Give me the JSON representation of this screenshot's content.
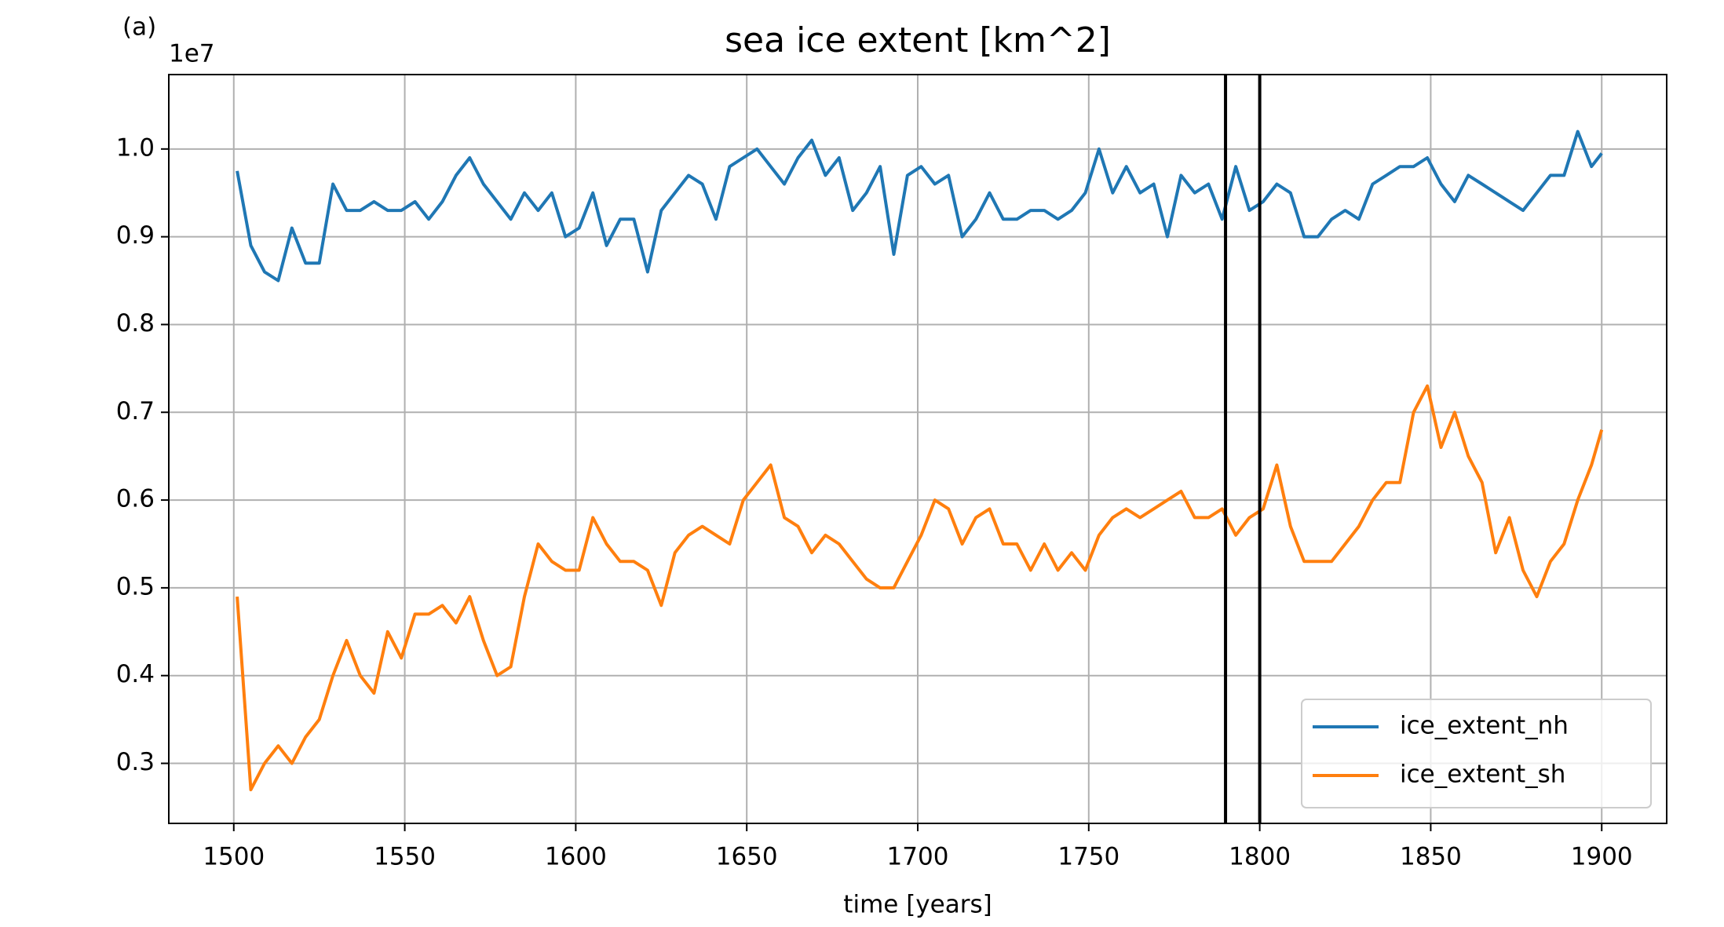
{
  "chart_data": {
    "type": "line",
    "panel_label": "(a)",
    "title": "sea ice extent [km^2]",
    "x_label": "time [years]",
    "y_offset_label": "1e7",
    "x": [
      1501,
      1505,
      1509,
      1513,
      1517,
      1521,
      1525,
      1529,
      1533,
      1537,
      1541,
      1545,
      1549,
      1553,
      1557,
      1561,
      1565,
      1569,
      1573,
      1577,
      1581,
      1585,
      1589,
      1593,
      1597,
      1601,
      1605,
      1609,
      1613,
      1617,
      1621,
      1625,
      1629,
      1633,
      1637,
      1641,
      1645,
      1649,
      1653,
      1657,
      1661,
      1665,
      1669,
      1673,
      1677,
      1681,
      1685,
      1689,
      1693,
      1697,
      1701,
      1705,
      1709,
      1713,
      1717,
      1721,
      1725,
      1729,
      1733,
      1737,
      1741,
      1745,
      1749,
      1753,
      1757,
      1761,
      1765,
      1769,
      1773,
      1777,
      1781,
      1785,
      1789,
      1793,
      1797,
      1801,
      1805,
      1809,
      1813,
      1817,
      1821,
      1825,
      1829,
      1833,
      1837,
      1841,
      1845,
      1849,
      1853,
      1857,
      1861,
      1865,
      1869,
      1873,
      1877,
      1881,
      1885,
      1889,
      1893,
      1897,
      1900
    ],
    "series": [
      {
        "name": "ice_extent_nh",
        "color": "#1f77b4",
        "values": [
          0.975,
          0.89,
          0.86,
          0.85,
          0.91,
          0.87,
          0.87,
          0.96,
          0.93,
          0.93,
          0.94,
          0.93,
          0.93,
          0.94,
          0.92,
          0.94,
          0.97,
          0.99,
          0.96,
          0.94,
          0.92,
          0.95,
          0.93,
          0.95,
          0.9,
          0.91,
          0.95,
          0.89,
          0.92,
          0.92,
          0.86,
          0.93,
          0.95,
          0.97,
          0.96,
          0.92,
          0.98,
          0.99,
          1.0,
          0.98,
          0.96,
          0.99,
          1.01,
          0.97,
          0.99,
          0.93,
          0.95,
          0.98,
          0.88,
          0.97,
          0.98,
          0.96,
          0.97,
          0.9,
          0.92,
          0.95,
          0.92,
          0.92,
          0.93,
          0.93,
          0.92,
          0.93,
          0.95,
          1.0,
          0.95,
          0.98,
          0.95,
          0.96,
          0.9,
          0.97,
          0.95,
          0.96,
          0.92,
          0.98,
          0.93,
          0.94,
          0.96,
          0.95,
          0.9,
          0.9,
          0.92,
          0.93,
          0.92,
          0.96,
          0.97,
          0.98,
          0.98,
          0.99,
          0.96,
          0.94,
          0.97,
          0.96,
          0.95,
          0.94,
          0.93,
          0.95,
          0.97,
          0.97,
          1.02,
          0.98,
          0.995
        ]
      },
      {
        "name": "ice_extent_sh",
        "color": "#ff7f0e",
        "values": [
          0.49,
          0.27,
          0.3,
          0.32,
          0.3,
          0.33,
          0.35,
          0.4,
          0.44,
          0.4,
          0.38,
          0.45,
          0.42,
          0.47,
          0.47,
          0.48,
          0.46,
          0.49,
          0.44,
          0.4,
          0.41,
          0.49,
          0.55,
          0.53,
          0.52,
          0.52,
          0.58,
          0.55,
          0.53,
          0.53,
          0.52,
          0.48,
          0.54,
          0.56,
          0.57,
          0.56,
          0.55,
          0.6,
          0.62,
          0.64,
          0.58,
          0.57,
          0.54,
          0.56,
          0.55,
          0.53,
          0.51,
          0.5,
          0.5,
          0.53,
          0.56,
          0.6,
          0.59,
          0.55,
          0.58,
          0.59,
          0.55,
          0.55,
          0.52,
          0.55,
          0.52,
          0.54,
          0.52,
          0.56,
          0.58,
          0.59,
          0.58,
          0.59,
          0.6,
          0.61,
          0.58,
          0.58,
          0.59,
          0.56,
          0.58,
          0.59,
          0.64,
          0.57,
          0.53,
          0.53,
          0.53,
          0.55,
          0.57,
          0.6,
          0.62,
          0.62,
          0.7,
          0.73,
          0.66,
          0.7,
          0.65,
          0.62,
          0.54,
          0.58,
          0.52,
          0.49,
          0.53,
          0.55,
          0.6,
          0.64,
          0.68
        ]
      }
    ],
    "vlines": [
      1790,
      1800
    ],
    "vline_color": "#000000",
    "xlim": [
      1481,
      1919
    ],
    "xticks": [
      1500,
      1550,
      1600,
      1650,
      1700,
      1750,
      1800,
      1850,
      1900
    ],
    "ylim": [
      0.2316,
      1.0848
    ],
    "yticks": [
      0.3,
      0.4,
      0.5,
      0.6,
      0.7,
      0.8,
      0.9,
      {
        "value": 1,
        "label": "1.0"
      }
    ],
    "grid": true,
    "legend": "lower right"
  }
}
